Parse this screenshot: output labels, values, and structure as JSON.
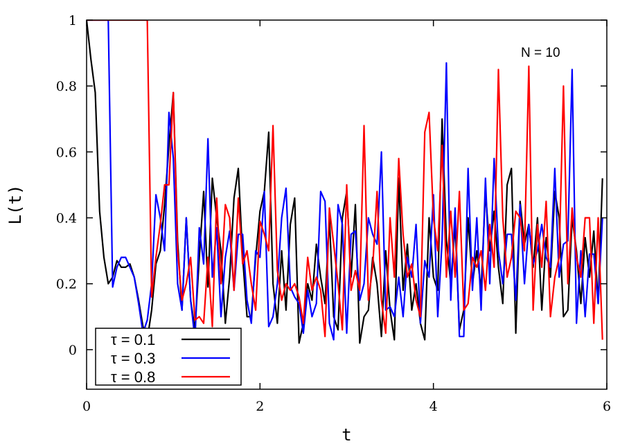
{
  "chart_data": {
    "type": "line",
    "xlabel": "t",
    "ylabel": "L(t)",
    "annotation": "N = 10",
    "xlim": [
      0,
      6
    ],
    "ylim": [
      -0.12,
      1.0
    ],
    "xticks": [
      0,
      2,
      4,
      6
    ],
    "yticks": [
      0,
      0.2,
      0.4,
      0.6,
      0.8,
      1
    ],
    "xtick_labels": [
      "0",
      "2",
      "4",
      "6"
    ],
    "ytick_labels": [
      "0",
      "0.2",
      "0.4",
      "0.6",
      "0.8",
      "1"
    ],
    "grid": false,
    "legend_position": "bottom-left",
    "x": [
      0.0,
      0.05,
      0.1,
      0.15,
      0.2,
      0.25,
      0.3,
      0.35,
      0.4,
      0.45,
      0.5,
      0.55,
      0.6,
      0.65,
      0.7,
      0.75,
      0.8,
      0.85,
      0.9,
      0.95,
      1.0,
      1.05,
      1.1,
      1.15,
      1.2,
      1.25,
      1.3,
      1.35,
      1.4,
      1.45,
      1.5,
      1.55,
      1.6,
      1.65,
      1.7,
      1.75,
      1.8,
      1.85,
      1.9,
      1.95,
      2.0,
      2.05,
      2.1,
      2.15,
      2.2,
      2.25,
      2.3,
      2.35,
      2.4,
      2.45,
      2.5,
      2.55,
      2.6,
      2.65,
      2.7,
      2.75,
      2.8,
      2.85,
      2.9,
      2.95,
      3.0,
      3.05,
      3.1,
      3.15,
      3.2,
      3.25,
      3.3,
      3.35,
      3.4,
      3.45,
      3.5,
      3.55,
      3.6,
      3.65,
      3.7,
      3.75,
      3.8,
      3.85,
      3.9,
      3.95,
      4.0,
      4.05,
      4.1,
      4.15,
      4.2,
      4.25,
      4.3,
      4.35,
      4.4,
      4.45,
      4.5,
      4.55,
      4.6,
      4.65,
      4.7,
      4.75,
      4.8,
      4.85,
      4.9,
      4.95,
      5.0,
      5.05,
      5.1,
      5.15,
      5.2,
      5.25,
      5.3,
      5.35,
      5.4,
      5.45,
      5.5,
      5.55,
      5.6,
      5.65,
      5.7,
      5.75,
      5.8,
      5.85,
      5.9,
      5.95
    ],
    "series": [
      {
        "name": "τ = 0.1",
        "color": "#000000",
        "values": [
          1.0,
          0.88,
          0.78,
          0.42,
          0.28,
          0.2,
          0.22,
          0.27,
          0.25,
          0.25,
          0.26,
          0.22,
          0.15,
          0.07,
          0.03,
          0.12,
          0.26,
          0.3,
          0.44,
          0.62,
          0.78,
          0.33,
          0.12,
          0.4,
          0.15,
          0.06,
          0.28,
          0.48,
          0.19,
          0.52,
          0.4,
          0.3,
          0.08,
          0.22,
          0.46,
          0.55,
          0.28,
          0.1,
          0.1,
          0.28,
          0.42,
          0.48,
          0.66,
          0.2,
          0.08,
          0.3,
          0.12,
          0.38,
          0.46,
          0.02,
          0.08,
          0.2,
          0.15,
          0.32,
          0.22,
          0.14,
          0.4,
          0.1,
          0.06,
          0.4,
          0.48,
          0.22,
          0.44,
          0.02,
          0.1,
          0.12,
          0.28,
          0.2,
          0.04,
          0.3,
          0.12,
          0.03,
          0.52,
          0.18,
          0.32,
          0.12,
          0.2,
          0.08,
          0.03,
          0.4,
          0.22,
          0.18,
          0.7,
          0.33,
          0.2,
          0.38,
          0.06,
          0.12,
          0.4,
          0.2,
          0.3,
          0.18,
          0.48,
          0.3,
          0.42,
          0.25,
          0.14,
          0.5,
          0.55,
          0.05,
          0.45,
          0.32,
          0.38,
          0.25,
          0.4,
          0.12,
          0.34,
          0.22,
          0.48,
          0.4,
          0.1,
          0.12,
          0.4,
          0.3,
          0.14,
          0.34,
          0.22,
          0.36,
          0.14,
          0.52
        ]
      },
      {
        "name": "τ = 0.3",
        "color": "#0000ff",
        "values": [
          1.0,
          1.0,
          1.0,
          1.0,
          1.0,
          1.0,
          0.19,
          0.25,
          0.28,
          0.28,
          0.25,
          0.22,
          0.14,
          0.05,
          0.09,
          0.2,
          0.47,
          0.4,
          0.3,
          0.72,
          0.58,
          0.2,
          0.12,
          0.4,
          0.15,
          0.03,
          0.37,
          0.26,
          0.64,
          0.22,
          0.37,
          0.1,
          0.28,
          0.36,
          0.18,
          0.35,
          0.35,
          0.15,
          0.08,
          0.3,
          0.28,
          0.48,
          0.07,
          0.1,
          0.2,
          0.4,
          0.49,
          0.19,
          0.16,
          0.14,
          0.05,
          0.18,
          0.1,
          0.14,
          0.48,
          0.45,
          0.08,
          0.03,
          0.44,
          0.38,
          0.05,
          0.35,
          0.36,
          0.15,
          0.2,
          0.4,
          0.35,
          0.32,
          0.6,
          0.12,
          0.13,
          0.1,
          0.22,
          0.1,
          0.28,
          0.22,
          0.38,
          0.08,
          0.27,
          0.22,
          0.47,
          0.1,
          0.33,
          0.87,
          0.15,
          0.43,
          0.04,
          0.04,
          0.55,
          0.18,
          0.4,
          0.12,
          0.52,
          0.2,
          0.58,
          0.3,
          0.2,
          0.35,
          0.35,
          0.15,
          0.44,
          0.2,
          0.38,
          0.26,
          0.3,
          0.38,
          0.28,
          0.25,
          0.55,
          0.22,
          0.32,
          0.33,
          0.85,
          0.08,
          0.3,
          0.1,
          0.29,
          0.29,
          0.14,
          0.4
        ]
      },
      {
        "name": "τ = 0.8",
        "color": "#ff0000",
        "values": [
          1.0,
          1.0,
          1.0,
          1.0,
          1.0,
          1.0,
          1.0,
          1.0,
          1.0,
          1.0,
          1.0,
          1.0,
          1.0,
          1.0,
          1.0,
          0.16,
          0.28,
          0.38,
          0.5,
          0.5,
          0.78,
          0.3,
          0.15,
          0.2,
          0.28,
          0.09,
          0.1,
          0.08,
          0.28,
          0.07,
          0.46,
          0.2,
          0.44,
          0.4,
          0.18,
          0.46,
          0.26,
          0.3,
          0.2,
          0.12,
          0.39,
          0.35,
          0.3,
          0.68,
          0.24,
          0.15,
          0.2,
          0.18,
          0.2,
          0.16,
          0.08,
          0.28,
          0.18,
          0.22,
          0.18,
          0.04,
          0.43,
          0.32,
          0.2,
          0.06,
          0.5,
          0.18,
          0.24,
          0.18,
          0.68,
          0.15,
          0.25,
          0.48,
          0.15,
          0.05,
          0.4,
          0.22,
          0.58,
          0.35,
          0.22,
          0.26,
          0.15,
          0.1,
          0.66,
          0.72,
          0.4,
          0.3,
          0.62,
          0.22,
          0.42,
          0.22,
          0.48,
          0.12,
          0.14,
          0.28,
          0.25,
          0.3,
          0.18,
          0.38,
          0.25,
          0.85,
          0.4,
          0.22,
          0.28,
          0.42,
          0.4,
          0.3,
          0.86,
          0.12,
          0.38,
          0.25,
          0.45,
          0.1,
          0.22,
          0.28,
          0.8,
          0.2,
          0.43,
          0.28,
          0.22,
          0.4,
          0.4,
          0.08,
          0.4,
          0.03
        ]
      }
    ]
  }
}
